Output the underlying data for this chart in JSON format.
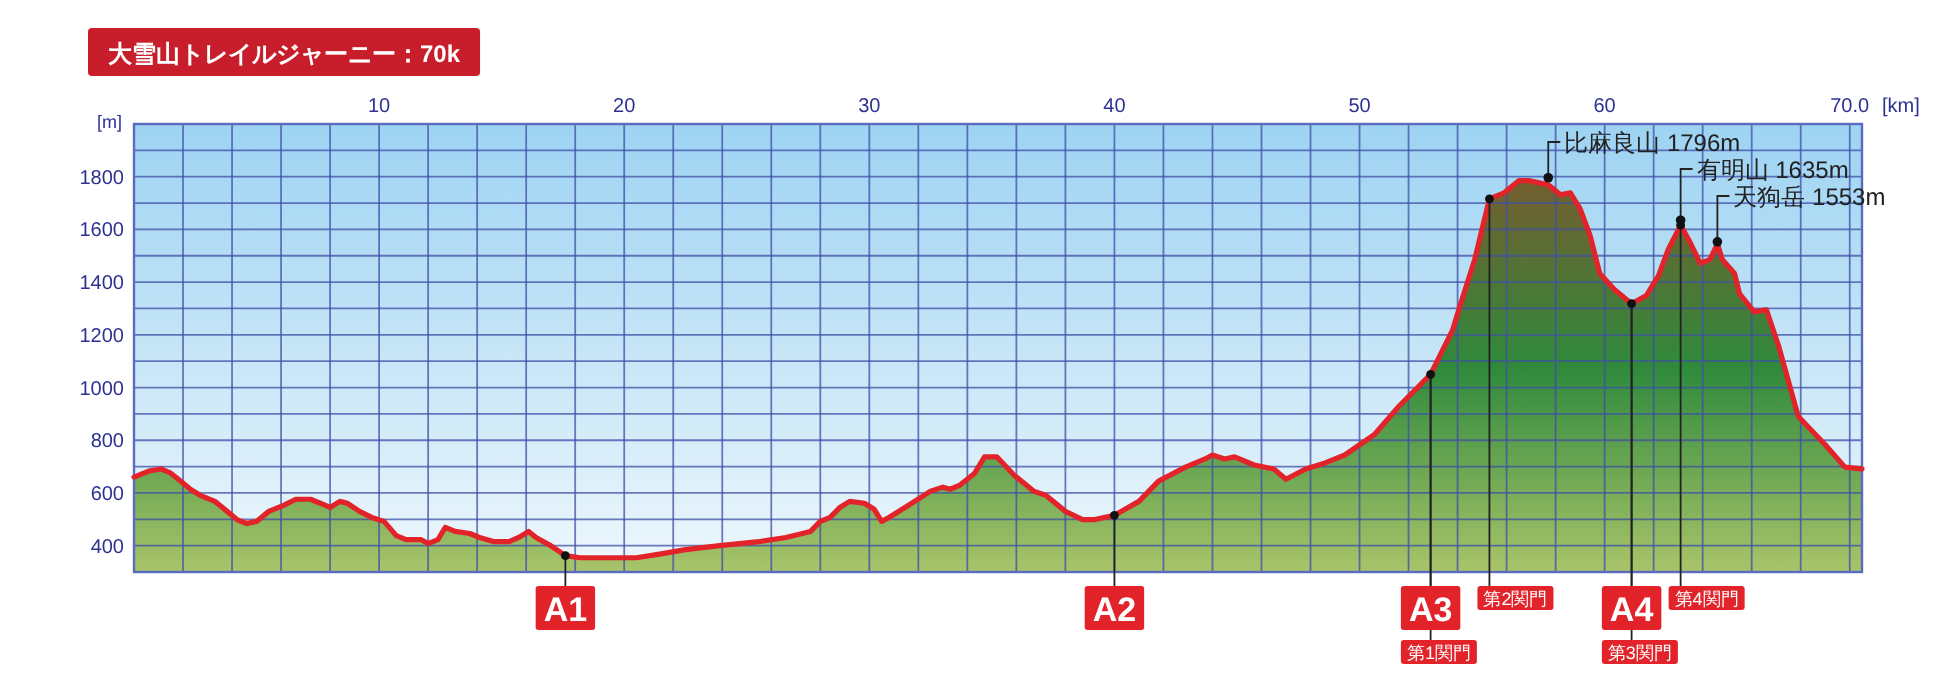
{
  "chart_data": {
    "type": "area",
    "title": "大雪山トレイルジャーニー：70k",
    "xlabel": "[km]",
    "ylabel": "[m]",
    "x": [
      0.0,
      0.6,
      1.1,
      1.5,
      1.9,
      2.3,
      2.7,
      3.3,
      3.8,
      4.2,
      4.6,
      5.0,
      5.5,
      6.1,
      6.6,
      7.2,
      7.6,
      8.0,
      8.4,
      8.7,
      9.2,
      9.7,
      10.2,
      10.7,
      11.1,
      11.7,
      12.0,
      12.4,
      12.7,
      13.1,
      13.7,
      14.1,
      14.7,
      15.3,
      15.7,
      16.1,
      16.4,
      17.0,
      17.6,
      18.2,
      19.0,
      20.5,
      21.5,
      22.5,
      23.9,
      25.5,
      26.6,
      27.6,
      28.0,
      28.4,
      28.8,
      29.2,
      29.8,
      30.2,
      30.5,
      30.8,
      31.6,
      32.5,
      33.0,
      33.3,
      33.7,
      34.3,
      34.7,
      35.2,
      35.9,
      36.7,
      37.2,
      38.0,
      38.7,
      39.2,
      40.0,
      41.0,
      41.8,
      42.9,
      43.7,
      44.0,
      44.5,
      44.9,
      45.7,
      46.5,
      47.0,
      47.8,
      48.6,
      49.4,
      50.6,
      51.6,
      52.9,
      53.8,
      54.1,
      54.7,
      55.3,
      55.9,
      56.5,
      56.9,
      57.7,
      58.2,
      58.6,
      59.0,
      59.4,
      59.8,
      60.4,
      61.1,
      61.7,
      62.2,
      62.6,
      63.1,
      63.5,
      63.9,
      64.3,
      64.6,
      64.8,
      65.3,
      65.5,
      66.1,
      66.6,
      67.1,
      67.9,
      69.0,
      69.8,
      70.5
    ],
    "series": [
      {
        "color": "#e2232a",
        "values": [
          660,
          683,
          691,
          675,
          645,
          614,
          591,
          568,
          530,
          499,
          484,
          492,
          530,
          553,
          576,
          576,
          561,
          545,
          568,
          561,
          530,
          507,
          492,
          438,
          423,
          423,
          408,
          423,
          469,
          454,
          446,
          431,
          415,
          415,
          431,
          454,
          431,
          400,
          362,
          354,
          354,
          354,
          369,
          385,
          400,
          415,
          431,
          454,
          492,
          507,
          545,
          568,
          561,
          538,
          492,
          507,
          553,
          607,
          622,
          614,
          630,
          675,
          737,
          737,
          668,
          607,
          591,
          530,
          499,
          499,
          515,
          568,
          645,
          698,
          729,
          744,
          729,
          737,
          706,
          691,
          652,
          691,
          714,
          744,
          821,
          928,
          1050,
          1219,
          1310,
          1486,
          1716,
          1739,
          1785,
          1785,
          1769,
          1731,
          1739,
          1678,
          1578,
          1433,
          1372,
          1318,
          1349,
          1425,
          1525,
          1616,
          1548,
          1471,
          1486,
          1545,
          1486,
          1433,
          1356,
          1287,
          1295,
          1157,
          890,
          783,
          698,
          691
        ]
      }
    ],
    "xlim": [
      0,
      70.5
    ],
    "ylim": [
      300,
      2000
    ],
    "xticks": [
      {
        "value": 0,
        "label": null
      },
      {
        "value": 2,
        "label": null
      },
      {
        "value": 4,
        "label": null
      },
      {
        "value": 6,
        "label": null
      },
      {
        "value": 8,
        "label": null
      },
      10,
      {
        "value": 12,
        "label": null
      },
      {
        "value": 14,
        "label": null
      },
      {
        "value": 16,
        "label": null
      },
      {
        "value": 18,
        "label": null
      },
      20,
      {
        "value": 22,
        "label": null
      },
      {
        "value": 24,
        "label": null
      },
      {
        "value": 26,
        "label": null
      },
      {
        "value": 28,
        "label": null
      },
      30,
      {
        "value": 32,
        "label": null
      },
      {
        "value": 34,
        "label": null
      },
      {
        "value": 36,
        "label": null
      },
      {
        "value": 38,
        "label": null
      },
      40,
      {
        "value": 42,
        "label": null
      },
      {
        "value": 44,
        "label": null
      },
      {
        "value": 46,
        "label": null
      },
      {
        "value": 48,
        "label": null
      },
      50,
      {
        "value": 52,
        "label": null
      },
      {
        "value": 54,
        "label": null
      },
      {
        "value": 56,
        "label": null
      },
      {
        "value": 58,
        "label": null
      },
      60,
      {
        "value": 62,
        "label": null
      },
      {
        "value": 64,
        "label": null
      },
      {
        "value": 66,
        "label": null
      },
      {
        "value": 68,
        "label": null
      },
      {
        "value": 70,
        "label": "70.0"
      }
    ],
    "yticks": [
      {
        "value": 300,
        "label": null
      },
      400,
      {
        "value": 500,
        "label": null
      },
      600,
      {
        "value": 700,
        "label": null
      },
      800,
      {
        "value": 900,
        "label": null
      },
      1000,
      {
        "value": 1100,
        "label": null
      },
      1200,
      {
        "value": 1300,
        "label": null
      },
      1400,
      {
        "value": 1500,
        "label": null
      },
      1600,
      {
        "value": 1700,
        "label": null
      },
      1800,
      {
        "value": 1900,
        "label": null
      },
      {
        "value": 2000,
        "label": null
      }
    ],
    "grid": true,
    "annotations": [
      {
        "text": "比麻良山 1796m",
        "x": 57.7,
        "y": 1796
      },
      {
        "text": "有明山 1635m",
        "x": 63.1,
        "y": 1635
      },
      {
        "text": "天狗岳 1553m",
        "x": 64.6,
        "y": 1553
      },
      {
        "text": "A1",
        "x": 17.6,
        "y": 362
      },
      {
        "text": "A2",
        "x": 40.0,
        "y": 515
      },
      {
        "text": "A3",
        "x": 52.9,
        "y": 1050
      },
      {
        "text": "第1関門",
        "x": 52.9,
        "y": 1050
      },
      {
        "text": "第2関門",
        "x": 55.3,
        "y": 1716
      },
      {
        "text": "A4",
        "x": 61.1,
        "y": 1318
      },
      {
        "text": "第3関門",
        "x": 61.1,
        "y": 1318
      },
      {
        "text": "第4関門",
        "x": 63.1,
        "y": 1616
      }
    ]
  }
}
